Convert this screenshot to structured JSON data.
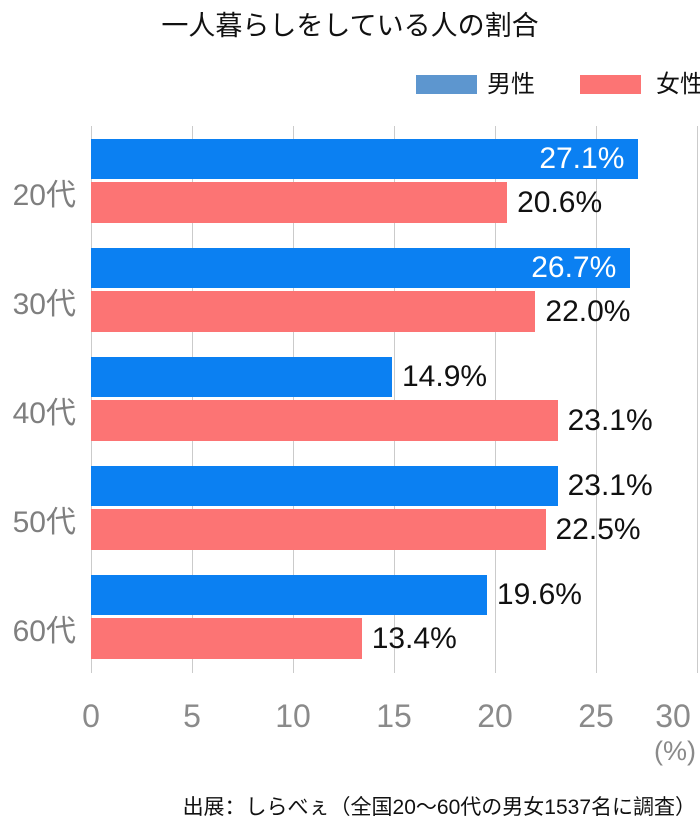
{
  "title": "一人暮らしをしている人の割合",
  "legend": {
    "male": "男性",
    "female": "女性"
  },
  "axis": {
    "ticks": [
      0,
      5,
      10,
      15,
      20,
      25,
      30
    ],
    "unit": "(%)"
  },
  "source": "出展：しらべぇ（全国20～60代の男女1537名に調査）",
  "colors": {
    "male_bar": "#0b80f2",
    "female_bar": "#fc7474",
    "legend_male": "#5d96cf",
    "legend_female": "#fc7474",
    "grid": "#cbcbcb",
    "tick_text": "#8a8a8a",
    "category_text": "#7f7f7f",
    "value_text": "#111111",
    "value_text_inside": "#ffffff"
  },
  "chart_data": {
    "type": "bar",
    "orientation": "horizontal",
    "title": "一人暮らしをしている人の割合",
    "categories": [
      "20代",
      "30代",
      "40代",
      "50代",
      "60代"
    ],
    "series": [
      {
        "name": "男性",
        "color": "#0b80f2",
        "values": [
          27.1,
          26.7,
          14.9,
          23.1,
          19.6
        ],
        "label_inside": [
          true,
          true,
          false,
          false,
          false
        ]
      },
      {
        "name": "女性",
        "color": "#fc7474",
        "values": [
          20.6,
          22.0,
          23.1,
          22.5,
          13.4
        ],
        "label_inside": [
          false,
          false,
          false,
          false,
          false
        ]
      }
    ],
    "value_suffix": "%",
    "xlabel": "(%)",
    "xlim": [
      0,
      30
    ],
    "grid": true,
    "legend_position": "top-right",
    "source": "出展：しらべぇ（全国20～60代の男女1537名に調査）"
  }
}
